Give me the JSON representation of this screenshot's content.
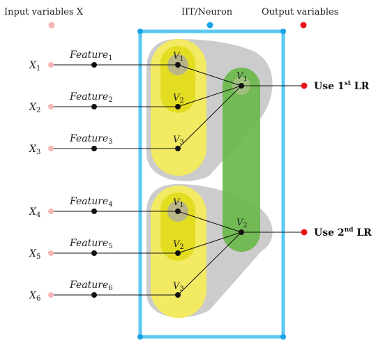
{
  "legend": {
    "input": "Input variables X",
    "neuron": "IIT/Neuron",
    "output": "Output variables"
  },
  "colors": {
    "input_dot": "#f6b6b6",
    "neuron_dot": "#1aa3e8",
    "output_dot": "#e8141e",
    "frame": "#5cc8f2",
    "yellow": "#f1ea62",
    "yellow_inner": "#e3dd22",
    "green": "#6ab94a",
    "gray": "#c9c9c9"
  },
  "inputs": [
    {
      "symbol": "X",
      "sub": "1",
      "feature": "Feature",
      "fsub": "1"
    },
    {
      "symbol": "X",
      "sub": "2",
      "feature": "Feature",
      "fsub": "2"
    },
    {
      "symbol": "X",
      "sub": "3",
      "feature": "Feature",
      "fsub": "3"
    },
    {
      "symbol": "X",
      "sub": "4",
      "feature": "Feature",
      "fsub": "4"
    },
    {
      "symbol": "X",
      "sub": "5",
      "feature": "Feature",
      "fsub": "5"
    },
    {
      "symbol": "X",
      "sub": "6",
      "feature": "Feature",
      "fsub": "6"
    }
  ],
  "groups": [
    {
      "nodes": [
        {
          "v": "V",
          "sub": "1"
        },
        {
          "v": "V",
          "sub": "2"
        },
        {
          "v": "V",
          "sub": "3"
        }
      ]
    },
    {
      "nodes": [
        {
          "v": "V",
          "sub": "1"
        },
        {
          "v": "V",
          "sub": "2"
        },
        {
          "v": "V",
          "sub": "3"
        }
      ]
    }
  ],
  "second_layer": [
    {
      "v": "V",
      "sub": "1"
    },
    {
      "v": "V",
      "sub": "2"
    }
  ],
  "outputs": [
    {
      "pre": "Use 1",
      "sup": "st",
      "post": " LR"
    },
    {
      "pre": "Use 2",
      "sup": "nd",
      "post": " LR"
    }
  ]
}
